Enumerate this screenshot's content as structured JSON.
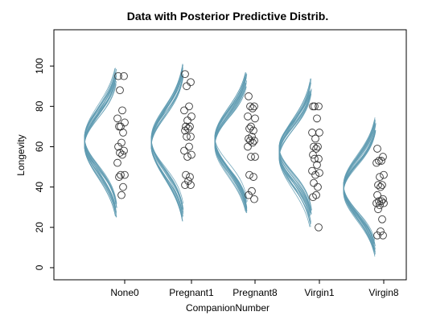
{
  "chart_data": {
    "type": "scatter",
    "title": "Data with Posterior Predictive Distrib.",
    "xlabel": "CompanionNumber",
    "ylabel": "Longevity",
    "ylim": [
      -6,
      118
    ],
    "yticks": [
      0,
      20,
      40,
      60,
      80,
      100
    ],
    "grid": false,
    "categories": [
      "None0",
      "Pregnant1",
      "Pregnant8",
      "Virgin1",
      "Virgin8"
    ],
    "series": [
      {
        "category": "None0",
        "values": [
          95,
          95,
          88,
          78,
          74,
          72,
          70,
          70,
          67,
          62,
          60,
          58,
          57,
          56,
          52,
          46,
          46,
          45,
          40,
          36
        ]
      },
      {
        "category": "Pregnant1",
        "values": [
          96,
          92,
          90,
          80,
          78,
          75,
          73,
          70,
          70,
          69,
          68,
          65,
          65,
          60,
          58,
          56,
          55,
          46,
          45,
          43,
          41,
          41
        ]
      },
      {
        "category": "Pregnant8",
        "values": [
          85,
          80,
          80,
          79,
          75,
          74,
          70,
          69,
          68,
          65,
          64,
          63,
          63,
          62,
          60,
          55,
          55,
          46,
          45,
          38,
          36,
          34
        ]
      },
      {
        "category": "Virgin1",
        "values": [
          80,
          80,
          80,
          74,
          67,
          67,
          64,
          60,
          60,
          59,
          56,
          54,
          54,
          51,
          48,
          47,
          46,
          42,
          40,
          36,
          35,
          20
        ]
      },
      {
        "category": "Virgin8",
        "values": [
          59,
          55,
          53,
          53,
          52,
          46,
          45,
          41,
          41,
          40,
          36,
          34,
          33,
          33,
          32,
          32,
          31,
          29,
          24,
          18,
          16,
          16
        ]
      }
    ],
    "posterior_predictive": [
      {
        "category": "None0",
        "center": 62,
        "mean_range": [
          60,
          65
        ],
        "sd_range": [
          12.5,
          16.5
        ]
      },
      {
        "category": "Pregnant1",
        "center": 62,
        "mean_range": [
          60,
          65
        ],
        "sd_range": [
          13,
          17
        ]
      },
      {
        "category": "Pregnant8",
        "center": 62,
        "mean_range": [
          60,
          65
        ],
        "sd_range": [
          12,
          15.5
        ]
      },
      {
        "category": "Virgin1",
        "center": 57,
        "mean_range": [
          54,
          60
        ],
        "sd_range": [
          12,
          16
        ]
      },
      {
        "category": "Virgin8",
        "center": 40,
        "mean_range": [
          37,
          43
        ],
        "sd_range": [
          11,
          15
        ]
      }
    ],
    "curve_count": 20,
    "colors": {
      "curves": "#5f9bb1",
      "points": "#333333"
    }
  }
}
